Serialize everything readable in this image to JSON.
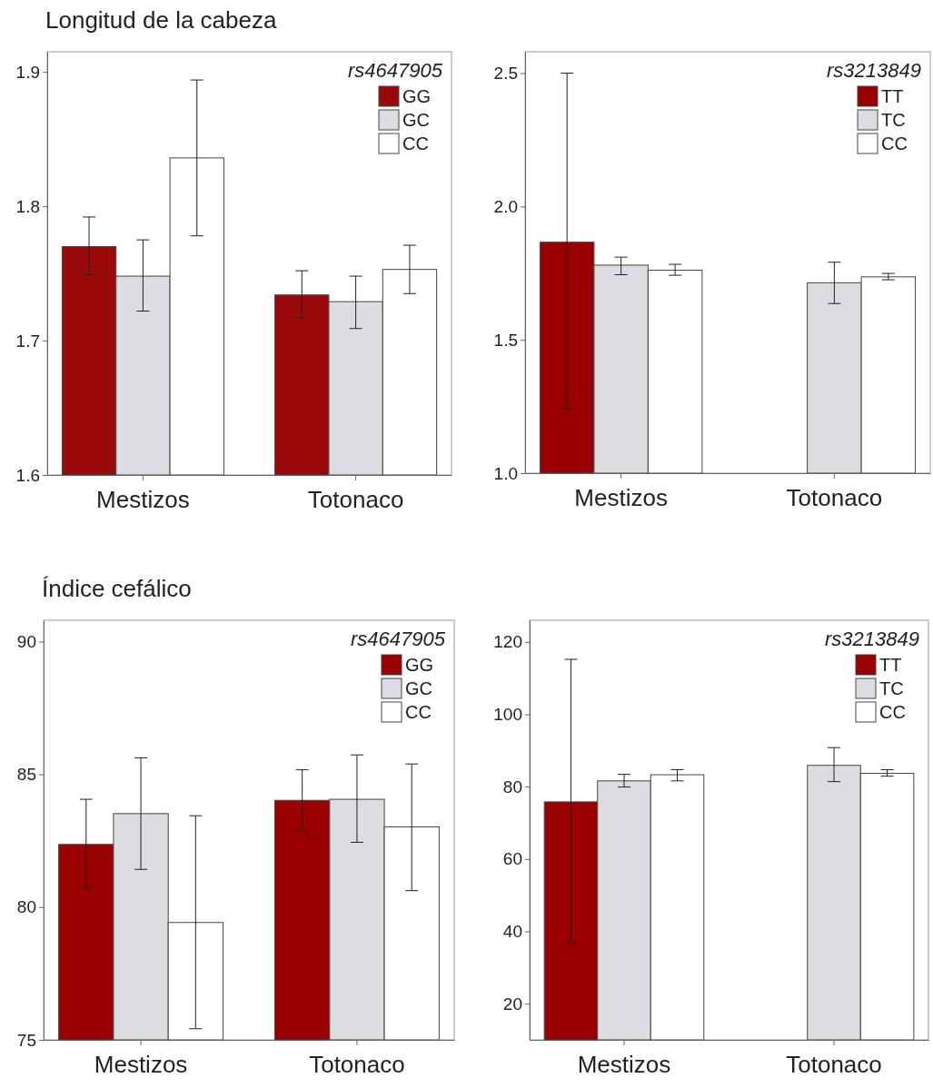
{
  "chart_data": [
    {
      "type": "bar",
      "title": "Longitud de la cabeza",
      "legend_title": "rs4647905",
      "legend": "top right",
      "categories": [
        "Mestizos",
        "Totonaco"
      ],
      "ylim": [
        1.6,
        1.915
      ],
      "yticks": [
        1.6,
        1.7,
        1.8,
        1.9
      ],
      "series": [
        {
          "name": "GG",
          "color": "#9b0a0a",
          "values": [
            1.77,
            1.734
          ],
          "errors": [
            [
              1.749,
              1.792
            ],
            [
              1.717,
              1.752
            ]
          ]
        },
        {
          "name": "GC",
          "color": "#dcdce2",
          "values": [
            1.748,
            1.729
          ],
          "errors": [
            [
              1.722,
              1.775
            ],
            [
              1.709,
              1.748
            ]
          ]
        },
        {
          "name": "CC",
          "color": "#ffffff",
          "values": [
            1.836,
            1.753
          ],
          "errors": [
            [
              1.778,
              1.894
            ],
            [
              1.735,
              1.771
            ]
          ]
        }
      ]
    },
    {
      "type": "bar",
      "legend_title": "rs3213849",
      "legend": "top right",
      "categories": [
        "Mestizos",
        "Totonaco"
      ],
      "ylim": [
        1.0,
        2.58
      ],
      "yticks": [
        {
          "value": 1,
          "label": "1.0"
        },
        1.5,
        {
          "value": 2,
          "label": "2.0"
        },
        2.5
      ],
      "series": [
        {
          "name": "TT",
          "color": "#9b0000",
          "values": [
            1.866,
            null
          ],
          "errors": [
            [
              1.239,
              2.5
            ],
            null
          ]
        },
        {
          "name": "TC",
          "color": "#dcdce2",
          "values": [
            1.78,
            1.714
          ],
          "errors": [
            [
              1.744,
              1.81
            ],
            [
              1.636,
              1.791
            ]
          ]
        },
        {
          "name": "CC",
          "color": "#ffffff",
          "values": [
            1.761,
            1.736
          ],
          "errors": [
            [
              1.742,
              1.783
            ],
            [
              1.725,
              1.749
            ]
          ]
        }
      ]
    },
    {
      "type": "bar",
      "title": "Índice cefálico",
      "legend_title": "rs4647905",
      "legend": "top right",
      "categories": [
        "Mestizos",
        "Totonaco"
      ],
      "ylim": [
        75,
        90.8
      ],
      "yticks": [
        75,
        80,
        85,
        90
      ],
      "series": [
        {
          "name": "GG",
          "color": "#9b0000",
          "values": [
            82.36,
            84.02
          ],
          "errors": [
            [
              80.71,
              84.06
            ],
            [
              82.89,
              85.17
            ]
          ]
        },
        {
          "name": "GC",
          "color": "#dcdce2",
          "values": [
            83.52,
            84.06
          ],
          "errors": [
            [
              81.42,
              85.62
            ],
            [
              82.44,
              85.73
            ]
          ]
        },
        {
          "name": "CC",
          "color": "#ffffff",
          "values": [
            79.42,
            83.02
          ],
          "errors": [
            [
              75.42,
              83.44
            ],
            [
              80.62,
              85.39
            ]
          ]
        }
      ]
    },
    {
      "type": "bar",
      "legend_title": "rs3213849",
      "legend": "top right",
      "categories": [
        "Mestizos",
        "Totonaco"
      ],
      "ylim": [
        10,
        126
      ],
      "yticks": [
        20,
        40,
        60,
        80,
        100,
        120
      ],
      "series": [
        {
          "name": "TT",
          "color": "#9b0000",
          "values": [
            75.8,
            null
          ],
          "errors": [
            [
              36.7,
              115.2
            ],
            null
          ]
        },
        {
          "name": "TC",
          "color": "#dcdce2",
          "values": [
            81.6,
            85.9
          ],
          "errors": [
            [
              79.9,
              83.4
            ],
            [
              81.4,
              90.8
            ]
          ]
        },
        {
          "name": "CC",
          "color": "#ffffff",
          "values": [
            83.3,
            83.7
          ],
          "errors": [
            [
              81.6,
              84.7
            ],
            [
              82.9,
              84.7
            ]
          ]
        }
      ]
    }
  ]
}
